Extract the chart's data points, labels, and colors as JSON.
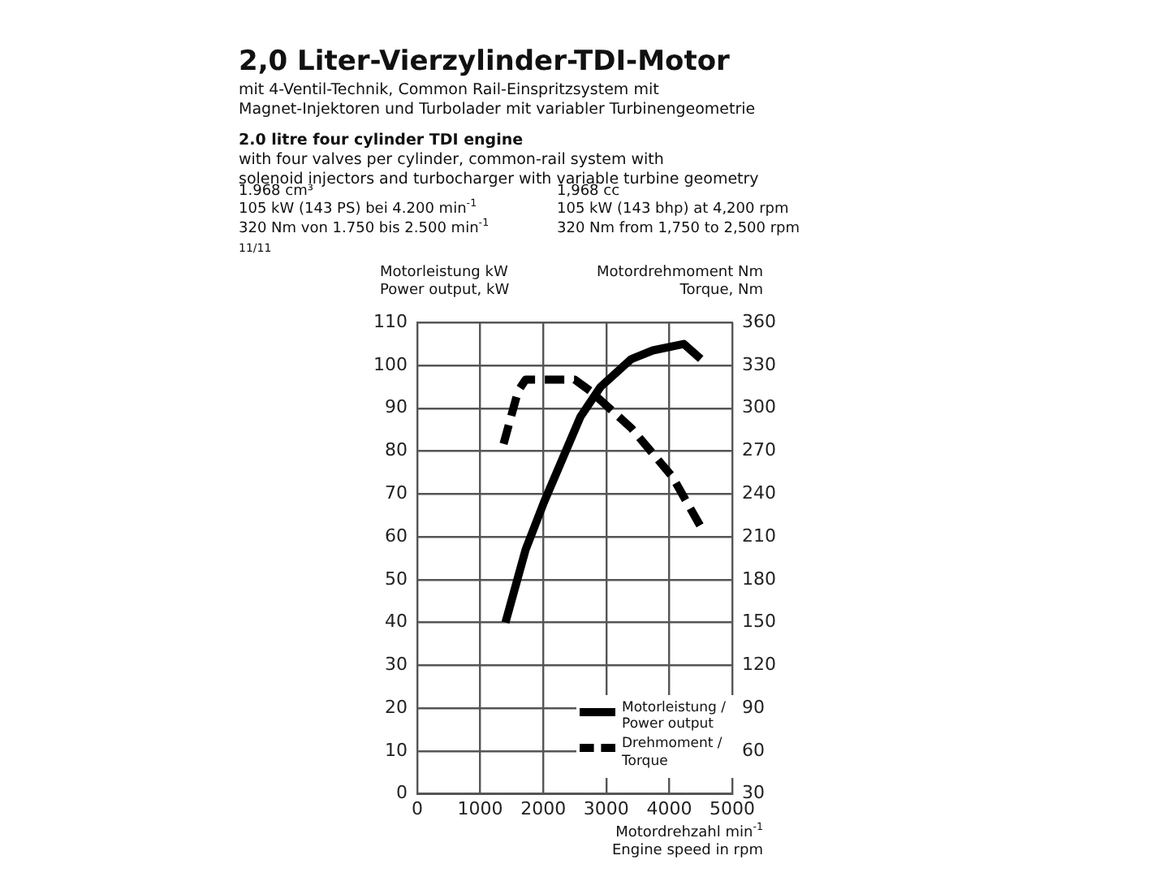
{
  "chart_data": {
    "type": "line",
    "title": "2,0 Liter-Vierzylinder-TDI-Motor",
    "subtitle": "mit 4-Ventil-Technik, Common Rail-Einspritzsystem mit\nMagnet-Injektoren und Turbolader mit variabler Turbinengeometrie",
    "annotations": [
      "2.0 litre four cylinder TDI engine",
      "with four valves per cylinder, common-rail system with\nsolenoid injectors and turbocharger with variable turbine geometry",
      "1.968 cm³\n105 kW (143 PS) bei 4.200 min$^{-1}$\n320 Nm von 1.750 bis 2.500 min$^{-1}$",
      "1,968 cc\n105 kW (143 bhp) at 4,200 rpm\n320 Nm from 1,750 to 2,500 rpm",
      "11/11"
    ],
    "xlabel": "Motordrehzahl min$^{-1}$\nEngine speed in rpm",
    "ylabel": "Motorleistung kW\nPower output, kW",
    "y2label": "Motordrehmoment Nm\nTorque, Nm",
    "series": [
      {
        "name": "Motorleistung / Power output",
        "color": "#000000",
        "line_style": "solid",
        "x": [
          1400,
          1720,
          2010,
          2300,
          2590,
          2910,
          3400,
          3740,
          4230,
          4500
        ],
        "values": [
          40,
          57,
          68,
          78,
          88,
          95,
          101.5,
          103.5,
          105,
          101.5
        ]
      },
      {
        "name": "Drehmoment / Torque",
        "color": "#000000",
        "line_style": "dashed",
        "axis": "y2",
        "x": [
          1370,
          1600,
          1720,
          2500,
          2750,
          3400,
          4050,
          4500
        ],
        "values": [
          275,
          312,
          320,
          320,
          312,
          286,
          252,
          217
        ]
      }
    ],
    "xlim": [
      0,
      5000
    ],
    "xticks": [
      0,
      1000,
      2000,
      3000,
      4000,
      5000
    ],
    "ylim": [
      0,
      110
    ],
    "yticks": [
      0,
      10,
      20,
      30,
      40,
      50,
      60,
      70,
      80,
      90,
      100,
      110
    ],
    "y2lim": [
      30,
      360
    ],
    "y2ticks": [
      30,
      60,
      90,
      120,
      150,
      180,
      210,
      240,
      270,
      300,
      330,
      360
    ],
    "grid": true,
    "legend": "bottom right",
    "marker": "none"
  }
}
